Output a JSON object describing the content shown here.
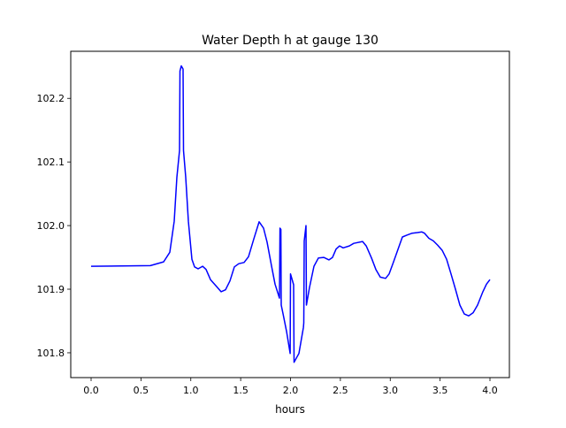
{
  "chart_data": {
    "type": "line",
    "title": "Water Depth h at gauge 130",
    "xlabel": "hours",
    "ylabel": "",
    "xlim": [
      -0.204,
      4.195
    ],
    "ylim": [
      101.761,
      102.274
    ],
    "xticks": [
      0.0,
      0.5,
      1.0,
      1.5,
      2.0,
      2.5,
      3.0,
      3.5,
      4.0
    ],
    "xtick_labels": [
      "0.0",
      "0.5",
      "1.0",
      "1.5",
      "2.0",
      "2.5",
      "3.0",
      "3.5",
      "4.0"
    ],
    "yticks": [
      101.8,
      101.9,
      102.0,
      102.1,
      102.2
    ],
    "ytick_labels": [
      "101.8",
      "101.9",
      "102.0",
      "102.1",
      "102.2"
    ],
    "grid": false,
    "series": [
      {
        "name": "h",
        "color": "#0000ff",
        "points": [
          [
            0,
            101.936
          ],
          [
            0.594,
            101.937
          ],
          [
            0.727,
            101.943
          ],
          [
            0.789,
            101.958
          ],
          [
            0.834,
            102.007
          ],
          [
            0.86,
            102.076
          ],
          [
            0.887,
            102.118
          ],
          [
            0.891,
            102.243
          ],
          [
            0.905,
            102.251
          ],
          [
            0.922,
            102.246
          ],
          [
            0.927,
            102.118
          ],
          [
            0.949,
            102.076
          ],
          [
            0.976,
            102.007
          ],
          [
            1.011,
            101.947
          ],
          [
            1.038,
            101.935
          ],
          [
            1.073,
            101.932
          ],
          [
            1.118,
            101.936
          ],
          [
            1.153,
            101.931
          ],
          [
            1.197,
            101.915
          ],
          [
            1.259,
            101.904
          ],
          [
            1.304,
            101.896
          ],
          [
            1.348,
            101.899
          ],
          [
            1.392,
            101.913
          ],
          [
            1.437,
            101.935
          ],
          [
            1.481,
            101.94
          ],
          [
            1.534,
            101.942
          ],
          [
            1.579,
            101.951
          ],
          [
            1.632,
            101.979
          ],
          [
            1.685,
            102.006
          ],
          [
            1.729,
            101.996
          ],
          [
            1.765,
            101.974
          ],
          [
            1.81,
            101.936
          ],
          [
            1.845,
            101.908
          ],
          [
            1.889,
            101.886
          ],
          [
            1.894,
            101.996
          ],
          [
            1.903,
            101.994
          ],
          [
            1.907,
            101.875
          ],
          [
            1.925,
            101.861
          ],
          [
            1.961,
            101.833
          ],
          [
            1.996,
            101.799
          ],
          [
            2.0,
            101.924
          ],
          [
            2.031,
            101.907
          ],
          [
            2.035,
            101.785
          ],
          [
            2.084,
            101.799
          ],
          [
            2.129,
            101.84
          ],
          [
            2.133,
            101.847
          ],
          [
            2.137,
            101.976
          ],
          [
            2.155,
            102.0
          ],
          [
            2.16,
            101.875
          ],
          [
            2.191,
            101.903
          ],
          [
            2.235,
            101.936
          ],
          [
            2.279,
            101.949
          ],
          [
            2.333,
            101.95
          ],
          [
            2.386,
            101.946
          ],
          [
            2.421,
            101.95
          ],
          [
            2.457,
            101.963
          ],
          [
            2.492,
            101.968
          ],
          [
            2.528,
            101.965
          ],
          [
            2.59,
            101.968
          ],
          [
            2.634,
            101.972
          ],
          [
            2.723,
            101.975
          ],
          [
            2.759,
            101.968
          ],
          [
            2.812,
            101.949
          ],
          [
            2.856,
            101.931
          ],
          [
            2.9,
            101.919
          ],
          [
            2.953,
            101.917
          ],
          [
            2.989,
            101.924
          ],
          [
            3.033,
            101.943
          ],
          [
            3.078,
            101.963
          ],
          [
            3.122,
            101.982
          ],
          [
            3.166,
            101.985
          ],
          [
            3.219,
            101.988
          ],
          [
            3.273,
            101.989
          ],
          [
            3.317,
            101.99
          ],
          [
            3.344,
            101.988
          ],
          [
            3.388,
            101.98
          ],
          [
            3.432,
            101.976
          ],
          [
            3.477,
            101.969
          ],
          [
            3.521,
            101.961
          ],
          [
            3.565,
            101.947
          ],
          [
            3.61,
            101.924
          ],
          [
            3.654,
            101.9
          ],
          [
            3.698,
            101.875
          ],
          [
            3.743,
            101.861
          ],
          [
            3.787,
            101.858
          ],
          [
            3.831,
            101.863
          ],
          [
            3.876,
            101.875
          ],
          [
            3.929,
            101.896
          ],
          [
            3.965,
            101.908
          ],
          [
            4.0,
            101.915
          ]
        ]
      }
    ]
  }
}
